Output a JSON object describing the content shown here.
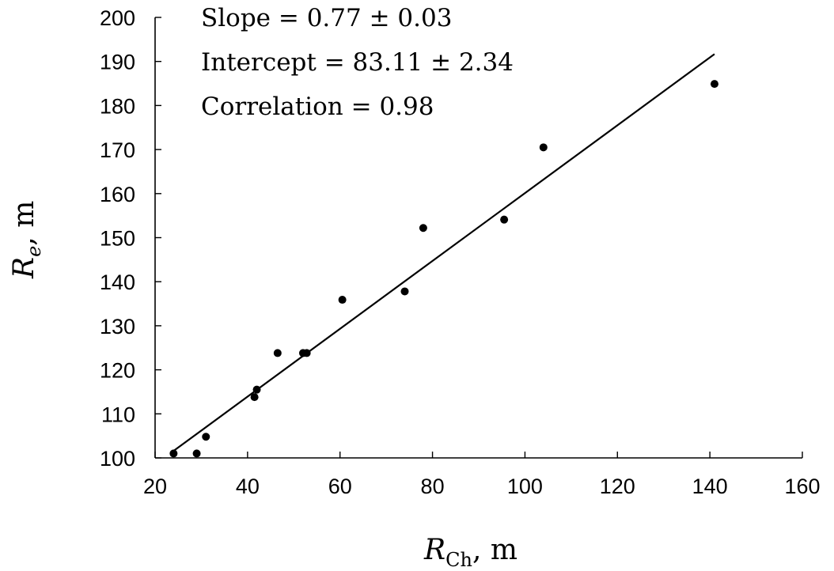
{
  "chart_data": {
    "type": "scatter",
    "x_axis": {
      "label_var": "R",
      "label_sub": "Ch",
      "label_rest": ", m",
      "range": [
        20,
        160
      ],
      "ticks": [
        20,
        40,
        60,
        80,
        100,
        120,
        140,
        160
      ]
    },
    "y_axis": {
      "label_var": "R",
      "label_sub": "e",
      "label_rest": ", m",
      "range": [
        100,
        200
      ],
      "ticks": [
        100,
        110,
        120,
        130,
        140,
        150,
        160,
        170,
        180,
        190,
        200
      ]
    },
    "points": [
      {
        "x": 24.0,
        "y": 101.0
      },
      {
        "x": 29.0,
        "y": 101.0
      },
      {
        "x": 31.0,
        "y": 104.8
      },
      {
        "x": 41.5,
        "y": 113.8
      },
      {
        "x": 42.0,
        "y": 115.5
      },
      {
        "x": 46.5,
        "y": 123.8
      },
      {
        "x": 52.0,
        "y": 123.8
      },
      {
        "x": 52.8,
        "y": 123.8
      },
      {
        "x": 60.5,
        "y": 135.9
      },
      {
        "x": 74.0,
        "y": 137.8
      },
      {
        "x": 78.0,
        "y": 152.2
      },
      {
        "x": 95.5,
        "y": 154.1
      },
      {
        "x": 104.0,
        "y": 170.5
      },
      {
        "x": 141.0,
        "y": 184.9
      }
    ],
    "fit_line": {
      "x_start": 23.5,
      "x_end": 141.0,
      "slope": 0.77,
      "intercept": 83.11
    },
    "annotations": [
      "Slope = 0.77 ± 0.03",
      "Intercept = 83.11 ± 2.34",
      "Correlation = 0.98"
    ],
    "grid": false,
    "legend": "none"
  }
}
